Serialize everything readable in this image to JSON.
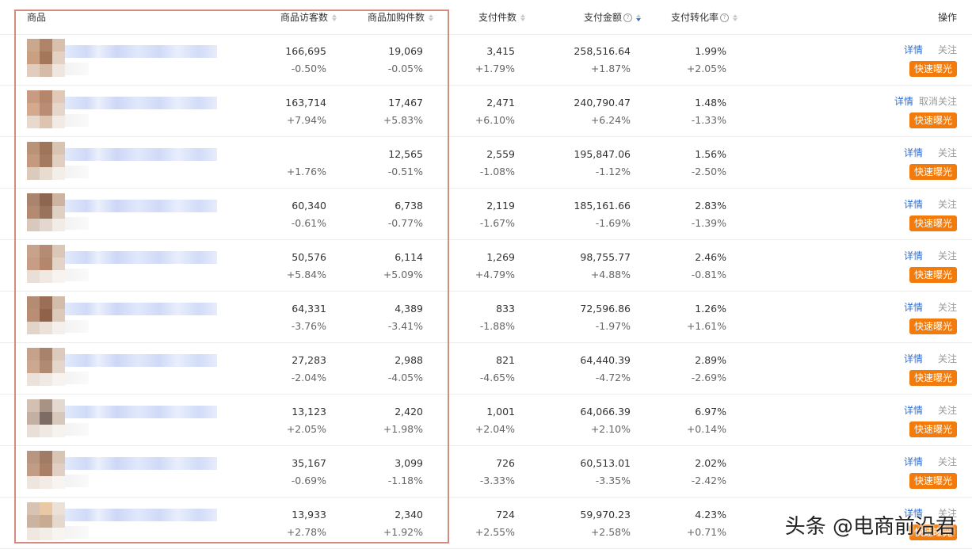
{
  "header": {
    "product": "商品",
    "visitors": "商品访客数",
    "cart_adds": "商品加购件数",
    "paid_items": "支付件数",
    "paid_amount": "支付金额",
    "conversion": "支付转化率",
    "actions": "操作"
  },
  "row_actions": {
    "detail": "详情",
    "follow": "关注",
    "unfollow": "取消关注",
    "expose": "快速曝光"
  },
  "rows": [
    {
      "visitors": "166,695",
      "visitors_chg": "-0.50%",
      "cart": "19,069",
      "cart_chg": "-0.05%",
      "paid": "3,415",
      "paid_chg": "+1.79%",
      "amount": "258,516.64",
      "amount_chg": "+1.87%",
      "conv": "1.99%",
      "conv_chg": "+2.05%",
      "follow": "关注"
    },
    {
      "visitors": "163,714",
      "visitors_chg": "+7.94%",
      "cart": "17,467",
      "cart_chg": "+5.83%",
      "paid": "2,471",
      "paid_chg": "+6.10%",
      "amount": "240,790.47",
      "amount_chg": "+6.24%",
      "conv": "1.48%",
      "conv_chg": "-1.33%",
      "follow": "取消关注"
    },
    {
      "visitors": "",
      "visitors_chg": "+1.76%",
      "cart": "12,565",
      "cart_chg": "-0.51%",
      "paid": "2,559",
      "paid_chg": "-1.08%",
      "amount": "195,847.06",
      "amount_chg": "-1.12%",
      "conv": "1.56%",
      "conv_chg": "-2.50%",
      "follow": "关注"
    },
    {
      "visitors": "60,340",
      "visitors_chg": "-0.61%",
      "cart": "6,738",
      "cart_chg": "-0.77%",
      "paid": "2,119",
      "paid_chg": "-1.67%",
      "amount": "185,161.66",
      "amount_chg": "-1.69%",
      "conv": "2.83%",
      "conv_chg": "-1.39%",
      "follow": "关注"
    },
    {
      "visitors": "50,576",
      "visitors_chg": "+5.84%",
      "cart": "6,114",
      "cart_chg": "+5.09%",
      "paid": "1,269",
      "paid_chg": "+4.79%",
      "amount": "98,755.77",
      "amount_chg": "+4.88%",
      "conv": "2.46%",
      "conv_chg": "-0.81%",
      "follow": "关注"
    },
    {
      "visitors": "64,331",
      "visitors_chg": "-3.76%",
      "cart": "4,389",
      "cart_chg": "-3.41%",
      "paid": "833",
      "paid_chg": "-1.88%",
      "amount": "72,596.86",
      "amount_chg": "-1.97%",
      "conv": "1.26%",
      "conv_chg": "+1.61%",
      "follow": "关注"
    },
    {
      "visitors": "27,283",
      "visitors_chg": "-2.04%",
      "cart": "2,988",
      "cart_chg": "-4.05%",
      "paid": "821",
      "paid_chg": "-4.65%",
      "amount": "64,440.39",
      "amount_chg": "-4.72%",
      "conv": "2.89%",
      "conv_chg": "-2.69%",
      "follow": "关注"
    },
    {
      "visitors": "13,123",
      "visitors_chg": "+2.05%",
      "cart": "2,420",
      "cart_chg": "+1.98%",
      "paid": "1,001",
      "paid_chg": "+2.04%",
      "amount": "64,066.39",
      "amount_chg": "+2.10%",
      "conv": "6.97%",
      "conv_chg": "+0.14%",
      "follow": "关注"
    },
    {
      "visitors": "35,167",
      "visitors_chg": "-0.69%",
      "cart": "3,099",
      "cart_chg": "-1.18%",
      "paid": "726",
      "paid_chg": "-3.33%",
      "amount": "60,513.01",
      "amount_chg": "-3.35%",
      "conv": "2.02%",
      "conv_chg": "-2.42%",
      "follow": "关注"
    },
    {
      "visitors": "13,933",
      "visitors_chg": "+2.78%",
      "cart": "2,340",
      "cart_chg": "+1.92%",
      "paid": "724",
      "paid_chg": "+2.55%",
      "amount": "59,970.23",
      "amount_chg": "+2.58%",
      "conv": "4.23%",
      "conv_chg": "+0.71%",
      "follow": "关注"
    }
  ],
  "watermark": "头条 @电商前沿君",
  "colors": {
    "link": "#2b6fd6",
    "expose_button": "#f27b0b",
    "highlight_border": "#d58a80",
    "sort_active": "#2b6fd6"
  }
}
